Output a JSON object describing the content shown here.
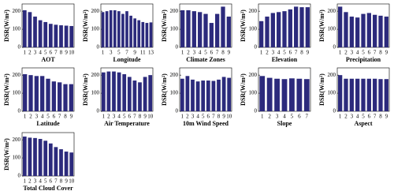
{
  "chart_data": [
    {
      "type": "bar",
      "xlabel": "AOT",
      "ylabel": "DSR(W/m²)",
      "categories": [
        1,
        2,
        3,
        4,
        5,
        6,
        7,
        8,
        9,
        10
      ],
      "values": [
        205,
        195,
        170,
        150,
        140,
        130,
        125,
        122,
        120,
        118
      ],
      "color": "#2c2a7c",
      "ylim": [
        0,
        240
      ],
      "yticks": [
        0,
        100,
        200
      ]
    },
    {
      "type": "bar",
      "xlabel": "Longitude",
      "ylabel": "DSR(W/m²)",
      "categories": [
        1,
        null,
        3,
        null,
        5,
        null,
        7,
        null,
        9,
        null,
        11,
        null,
        13
      ],
      "values": [
        195,
        200,
        205,
        205,
        200,
        185,
        200,
        175,
        160,
        150,
        140,
        135,
        138
      ],
      "color": "#2c2a7c",
      "ylim": [
        0,
        240
      ],
      "yticks": [
        0,
        100,
        200
      ]
    },
    {
      "type": "bar",
      "xlabel": "Climate Zones",
      "ylabel": "DSR(W/m²)",
      "categories": [
        1,
        2,
        3,
        4,
        5,
        6,
        7,
        8,
        9
      ],
      "values": [
        205,
        205,
        200,
        195,
        185,
        135,
        185,
        225,
        170
      ],
      "color": "#2c2a7c",
      "ylim": [
        0,
        240
      ],
      "yticks": [
        0,
        100,
        200
      ]
    },
    {
      "type": "bar",
      "xlabel": "Elevation",
      "ylabel": "DSR(W/m²)",
      "categories": [
        1,
        2,
        3,
        4,
        5,
        6,
        7,
        8,
        9
      ],
      "values": [
        145,
        170,
        190,
        195,
        200,
        210,
        225,
        222,
        222
      ],
      "color": "#2c2a7c",
      "ylim": [
        0,
        240
      ],
      "yticks": [
        0,
        100,
        200
      ]
    },
    {
      "type": "bar",
      "xlabel": "Precipitation",
      "ylabel": "DSR(W/m²)",
      "categories": [
        1,
        2,
        3,
        4,
        5,
        6,
        7,
        8,
        9
      ],
      "values": [
        225,
        195,
        170,
        165,
        185,
        190,
        180,
        175,
        170
      ],
      "color": "#2c2a7c",
      "ylim": [
        0,
        240
      ],
      "yticks": [
        0,
        100,
        200
      ]
    },
    {
      "type": "bar",
      "xlabel": "Latitude",
      "ylabel": "DSR(W/m²)",
      "categories": [
        1,
        2,
        3,
        4,
        5,
        6,
        7,
        8,
        9
      ],
      "values": [
        205,
        200,
        195,
        195,
        180,
        165,
        160,
        150,
        150
      ],
      "color": "#2c2a7c",
      "ylim": [
        0,
        240
      ],
      "yticks": [
        0,
        100,
        200
      ]
    },
    {
      "type": "bar",
      "xlabel": "Air Temperature",
      "ylabel": "DSR(W/m²)",
      "categories": [
        1,
        2,
        3,
        4,
        5,
        6,
        7,
        8,
        9,
        10
      ],
      "values": [
        215,
        220,
        220,
        215,
        205,
        190,
        170,
        160,
        190,
        200
      ],
      "color": "#2c2a7c",
      "ylim": [
        0,
        240
      ],
      "yticks": [
        0,
        100,
        200
      ]
    },
    {
      "type": "bar",
      "xlabel": "10m Wind Speed",
      "ylabel": "DSR(W/m²)",
      "categories": [
        1,
        2,
        3,
        4,
        5,
        6,
        7,
        8,
        9,
        10
      ],
      "values": [
        180,
        195,
        175,
        165,
        170,
        170,
        168,
        175,
        190,
        185
      ],
      "color": "#2c2a7c",
      "ylim": [
        0,
        240
      ],
      "yticks": [
        0,
        100,
        200
      ]
    },
    {
      "type": "bar",
      "xlabel": "Slope",
      "ylabel": "DSR(W/m²)",
      "categories": [
        1,
        2,
        3,
        4,
        5,
        6,
        7
      ],
      "values": [
        195,
        185,
        180,
        178,
        182,
        180,
        178
      ],
      "color": "#2c2a7c",
      "ylim": [
        0,
        240
      ],
      "yticks": [
        0,
        100,
        200
      ]
    },
    {
      "type": "bar",
      "xlabel": "Aspect",
      "ylabel": "DSR(W/m²)",
      "categories": [
        1,
        2,
        3,
        4,
        5,
        6,
        7,
        8,
        9
      ],
      "values": [
        200,
        180,
        180,
        180,
        180,
        180,
        180,
        178,
        178
      ],
      "color": "#2c2a7c",
      "ylim": [
        0,
        240
      ],
      "yticks": [
        0,
        100,
        200
      ]
    },
    {
      "type": "bar",
      "xlabel": "Total Cloud Cover",
      "ylabel": "DSR(W/m²)",
      "categories": [
        1,
        2,
        3,
        4,
        5,
        6,
        7,
        8,
        9,
        10
      ],
      "values": [
        218,
        212,
        210,
        205,
        195,
        180,
        160,
        148,
        135,
        130
      ],
      "color": "#2c2a7c",
      "ylim": [
        0,
        240
      ],
      "yticks": [
        0,
        100,
        200
      ]
    }
  ]
}
